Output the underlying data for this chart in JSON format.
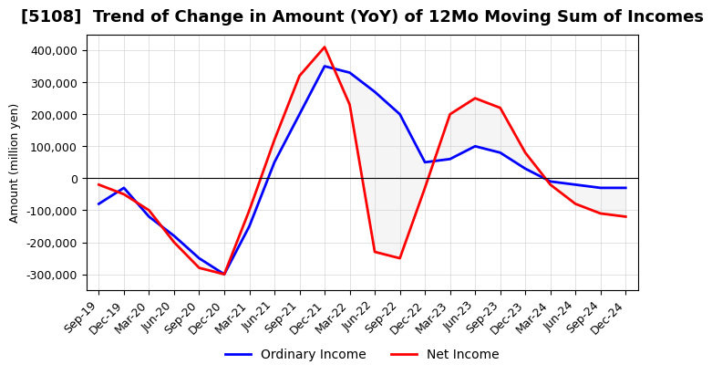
{
  "title": "[5108]  Trend of Change in Amount (YoY) of 12Mo Moving Sum of Incomes",
  "ylabel": "Amount (million yen)",
  "x_labels": [
    "Sep-19",
    "Dec-19",
    "Mar-20",
    "Jun-20",
    "Sep-20",
    "Dec-20",
    "Mar-21",
    "Jun-21",
    "Sep-21",
    "Dec-21",
    "Mar-22",
    "Jun-22",
    "Sep-22",
    "Dec-22",
    "Mar-23",
    "Jun-23",
    "Sep-23",
    "Dec-23",
    "Mar-24",
    "Jun-24",
    "Sep-24",
    "Dec-24"
  ],
  "ordinary_income": [
    -80000,
    -30000,
    -120000,
    -180000,
    -250000,
    -300000,
    -150000,
    50000,
    200000,
    350000,
    330000,
    270000,
    200000,
    50000,
    60000,
    100000,
    80000,
    30000,
    -10000,
    -20000,
    -30000,
    -30000
  ],
  "net_income": [
    -20000,
    -50000,
    -100000,
    -200000,
    -280000,
    -300000,
    -100000,
    120000,
    320000,
    410000,
    230000,
    -230000,
    -250000,
    -30000,
    200000,
    250000,
    220000,
    80000,
    -20000,
    -80000,
    -110000,
    -120000
  ],
  "ordinary_color": "#0000ff",
  "net_color": "#ff0000",
  "ylim": [
    -350000,
    450000
  ],
  "yticks": [
    -300000,
    -200000,
    -100000,
    0,
    100000,
    200000,
    300000,
    400000
  ],
  "background_color": "#ffffff",
  "grid_color": "#cccccc",
  "title_fontsize": 13,
  "axis_fontsize": 9,
  "legend_fontsize": 10
}
